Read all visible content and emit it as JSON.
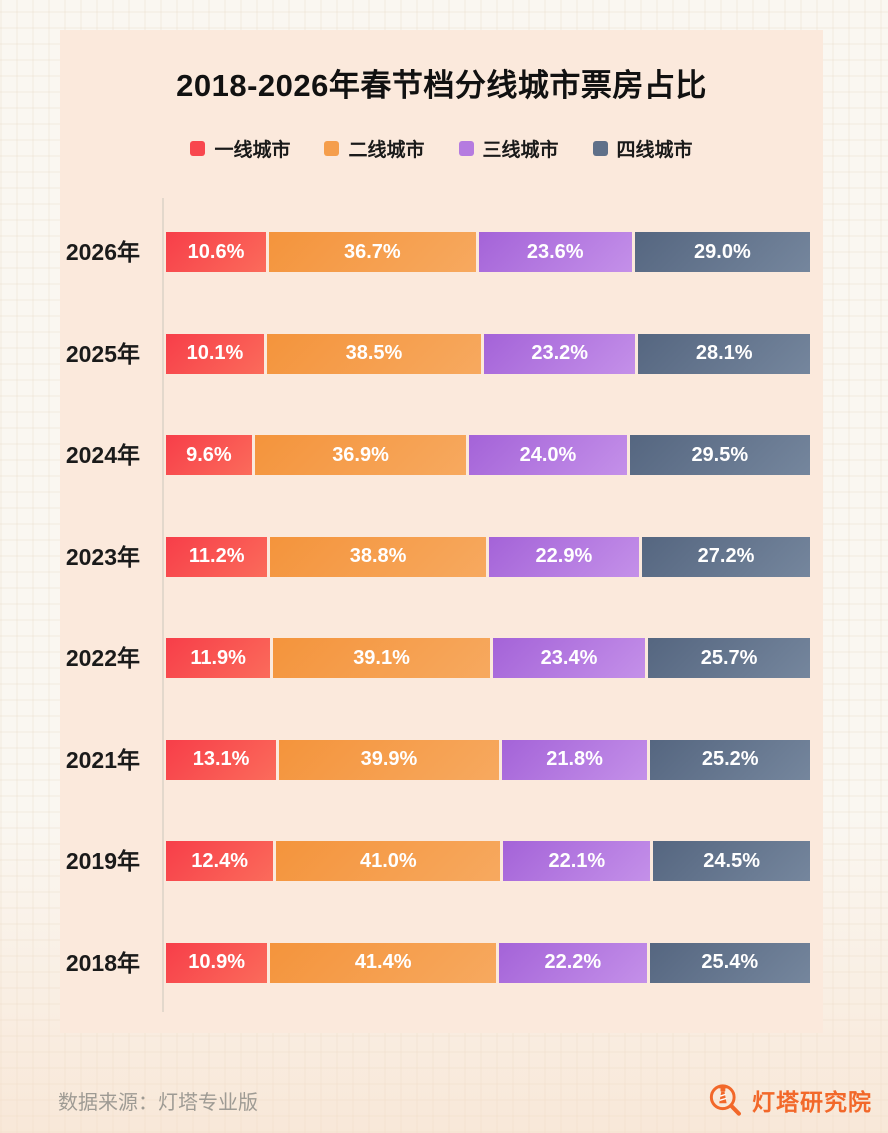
{
  "title": "2018-2026年春节档分线城市票房占比",
  "legend_items": [
    {
      "label": "一线城市",
      "color": "#F8474E"
    },
    {
      "label": "二线城市",
      "color": "#F59E4C"
    },
    {
      "label": "三线城市",
      "color": "#B57BE0"
    },
    {
      "label": "四线城市",
      "color": "#5F7089"
    }
  ],
  "chart_data": {
    "type": "bar",
    "variant": "horizontal-stacked-100",
    "title": "2018-2026年春节档分线城市票房占比",
    "categories": [
      "2026年",
      "2025年",
      "2024年",
      "2023年",
      "2022年",
      "2021年",
      "2019年",
      "2018年"
    ],
    "series": [
      {
        "name": "一线城市",
        "color": "#F73E49",
        "color2": "#FB6B5B",
        "values": [
          10.6,
          10.1,
          9.6,
          11.2,
          11.9,
          13.1,
          12.4,
          10.9
        ]
      },
      {
        "name": "二线城市",
        "color": "#F4943C",
        "color2": "#F7A95F",
        "values": [
          36.7,
          38.5,
          36.9,
          38.8,
          39.1,
          39.9,
          41.0,
          41.4
        ]
      },
      {
        "name": "三线城市",
        "color": "#A463D8",
        "color2": "#C490E9",
        "values": [
          23.6,
          23.2,
          24.0,
          22.9,
          23.4,
          21.8,
          22.1,
          22.2
        ]
      },
      {
        "name": "四线城市",
        "color": "#556680",
        "color2": "#75869D",
        "values": [
          29.0,
          28.1,
          29.5,
          27.2,
          25.7,
          25.2,
          24.5,
          25.4
        ]
      }
    ],
    "value_suffix": "%",
    "xlim": [
      0,
      100
    ],
    "legend_position": "top",
    "grid": false
  },
  "footer": {
    "source": "数据来源：灯塔专业版",
    "brand": "灯塔研究院"
  },
  "colors": {
    "page_bg": "#FAF7F1",
    "panel_bg": "#FBE9DC",
    "title_text": "#111111",
    "axis_line": "#E3D8CC",
    "year_text": "#1A1A1A",
    "bar_label_text": "#FFFFFF",
    "source_text": "#9E9B94",
    "brand_orange": "#F2682A"
  }
}
